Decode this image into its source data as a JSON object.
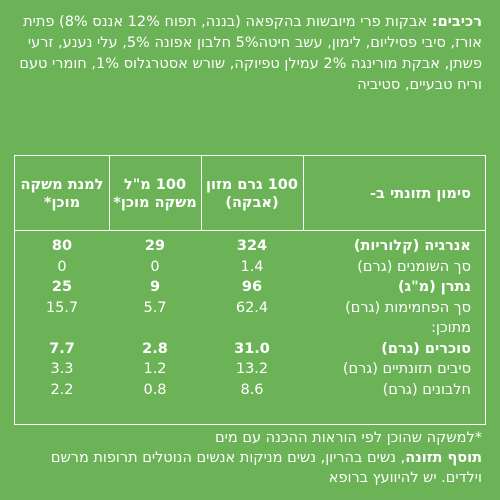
{
  "ingredients": {
    "label": "רכיבים:",
    "text": "אבקות פרי מיובשות בהקפאה (בננה, תפוח 12% אננס 8%) פתית אורז, סיבי פסיליום, לימון, עשב חיטה5% חלבון אפונה 5%, עלי נענע, זרעי פשתן, אבקת מורינגה 2% עמילן טפיוקה, שורש אסטרגלוס 1%, חומרי טעם וריח טבעיים, סטיביה"
  },
  "table": {
    "headers": {
      "nutrition": "סימון תזונתי ב-",
      "col1": "100 גרם מזון (אבקה)",
      "col2": "100 מ\"ל משקה מוכן*",
      "col3": "למנת משקה מוכן*"
    },
    "rows": [
      {
        "name": "אנרגיה (קלוריות)",
        "v1": "324",
        "v2": "29",
        "v3": "80",
        "bold": true
      },
      {
        "name": "סך השומנים (גרם)",
        "v1": "1.4",
        "v2": "0",
        "v3": "0",
        "bold": false
      },
      {
        "name": "נתרן (מ\"ג)",
        "v1": "96",
        "v2": "9",
        "v3": "25",
        "bold": true
      },
      {
        "name": "סך הפחמימות (גרם)",
        "v1": "62.4",
        "v2": "5.7",
        "v3": "15.7",
        "bold": false
      },
      {
        "name": "מתוכן:",
        "v1": "",
        "v2": "",
        "v3": "",
        "bold": false
      },
      {
        "name": "סוכרים (גרם)",
        "v1": "31.0",
        "v2": "2.8",
        "v3": "7.7",
        "bold": true
      },
      {
        "name": "סיבים תזונתיים (גרם)",
        "v1": "13.2",
        "v2": "1.2",
        "v3": "3.3",
        "bold": false
      },
      {
        "name": "חלבונים (גרם)",
        "v1": "8.6",
        "v2": "0.8",
        "v3": "2.2",
        "bold": false
      }
    ]
  },
  "footer": {
    "note": "*למשקה שהוכן לפי הוראות ההכנה עם מים",
    "supplement_label": "תוסף תזונה",
    "supplement_text": ", נשים בהריון, נשים מניקות אנשים הנוטלים תרופות מרשם וילדים. יש להיוועץ ברופא"
  }
}
